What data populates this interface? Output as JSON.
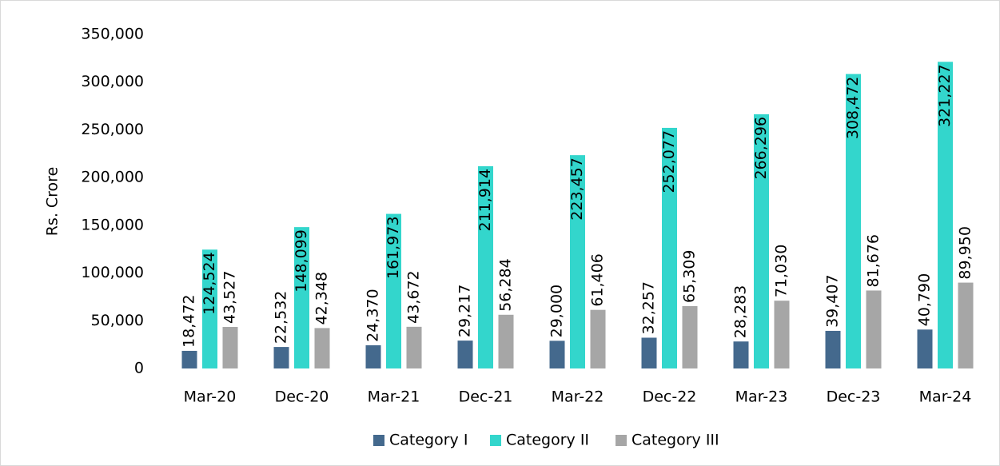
{
  "chart_data": {
    "type": "bar",
    "y_label": "Rs. Crore",
    "categories": [
      "Mar-20",
      "Dec-20",
      "Mar-21",
      "Dec-21",
      "Mar-22",
      "Dec-22",
      "Mar-23",
      "Dec-23",
      "Mar-24"
    ],
    "series": [
      {
        "name": "Category I",
        "color": "#44698d",
        "values": [
          18472,
          22532,
          24370,
          29217,
          29000,
          32257,
          28283,
          39407,
          40790
        ],
        "value_labels": [
          "18,472",
          "22,532",
          "24,370",
          "29,217",
          "29,000",
          "32,257",
          "28,283",
          "39,407",
          "40,790"
        ]
      },
      {
        "name": "Category II",
        "color": "#33d6cc",
        "values": [
          124524,
          148099,
          161973,
          211914,
          223457,
          252077,
          266296,
          308472,
          321227
        ],
        "value_labels": [
          "124,524",
          "148,099",
          "161,973",
          "211,914",
          "223,457",
          "252,077",
          "266,296",
          "308,472",
          "321,227"
        ]
      },
      {
        "name": "Category III",
        "color": "#a6a6a6",
        "values": [
          43527,
          42348,
          43672,
          56284,
          61406,
          65309,
          71030,
          81676,
          89950
        ],
        "value_labels": [
          "43,527",
          "42,348",
          "43,672",
          "56,284",
          "61,406",
          "65,309",
          "71,030",
          "81,676",
          "89,950"
        ]
      }
    ],
    "ylim": [
      0,
      350000
    ],
    "yticks": [
      0,
      {
        "value": 50000,
        "label": "50,000"
      },
      {
        "value": 100000,
        "label": "100,000"
      },
      {
        "value": 150000,
        "label": "150,000"
      },
      {
        "value": 200000,
        "label": "200,000"
      },
      {
        "value": 250000,
        "label": "250,000"
      },
      {
        "value": 300000,
        "label": "300,000"
      },
      {
        "value": 350000,
        "label": "350,000"
      }
    ],
    "grid": false,
    "legend": "bottom"
  }
}
